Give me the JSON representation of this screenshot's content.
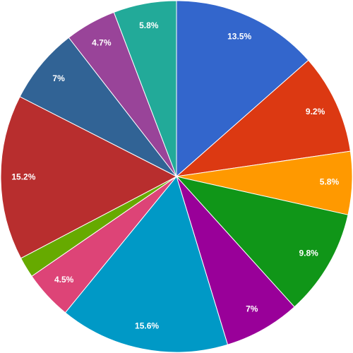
{
  "chart_data": {
    "type": "pie",
    "values": [
      13.5,
      9.2,
      5.8,
      9.8,
      7,
      15.6,
      4.5,
      1.9,
      15.2,
      7,
      4.7,
      5.8
    ],
    "value_labels": [
      "13.5%",
      "9.2%",
      "5.8%",
      "9.8%",
      "7%",
      "15.6%",
      "4.5%",
      null,
      "15.2%",
      "7%",
      "4.7%",
      "5.8%"
    ],
    "colors": [
      "#3366cc",
      "#dc3912",
      "#ff9900",
      "#109618",
      "#990099",
      "#0099c6",
      "#dd4477",
      "#66aa00",
      "#b82e2e",
      "#316395",
      "#994499",
      "#22aa99"
    ]
  }
}
